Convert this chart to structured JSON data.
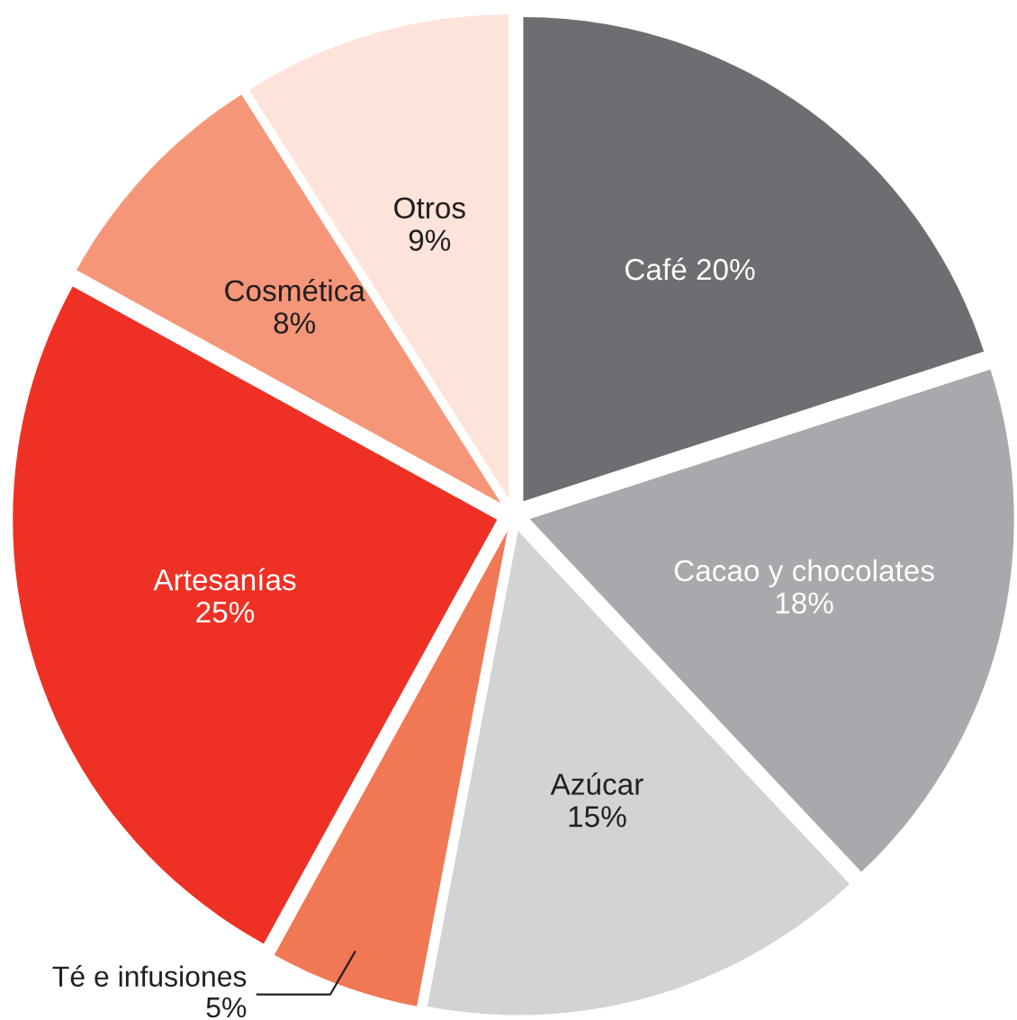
{
  "chart_data": {
    "type": "pie",
    "categories": [
      "Café",
      "Cacao y chocolates",
      "Azúcar",
      "Té e infusiones",
      "Artesanías",
      "Cosmética",
      "Otros"
    ],
    "values": [
      20,
      18,
      15,
      5,
      25,
      8,
      9
    ],
    "value_labels": [
      "20%",
      "18%",
      "15%",
      "5%",
      "25%",
      "8%",
      "9%"
    ],
    "colors": [
      "#6d6e71",
      "#a7a9ac",
      "#d1d3d4",
      "#f07855",
      "#ee3124",
      "#f69679",
      "#fde3d9"
    ],
    "legend": false
  }
}
